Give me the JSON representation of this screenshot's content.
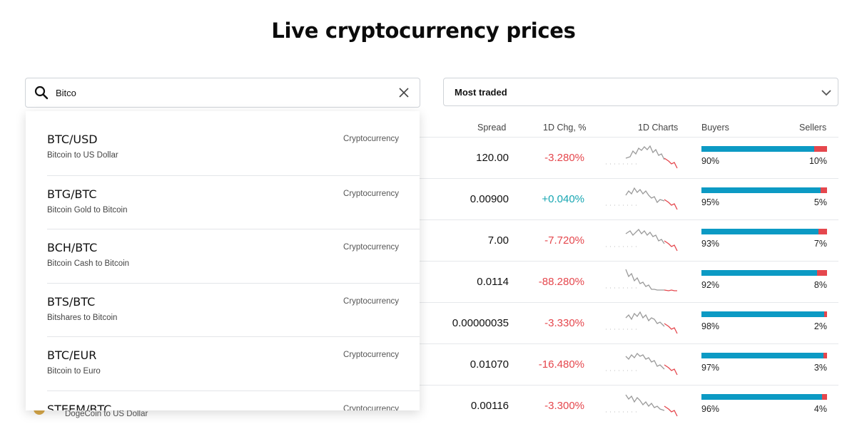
{
  "page": {
    "title": "Live cryptocurrency prices"
  },
  "search": {
    "value": "Bitco",
    "placeholder": ""
  },
  "sort": {
    "selected": "Most traded"
  },
  "table": {
    "headers": {
      "spread": "Spread",
      "chg": "1D Chg, %",
      "charts": "1D Charts",
      "buyers": "Buyers",
      "sellers": "Sellers"
    },
    "rows": [
      {
        "spread": "120.00",
        "chg": "-3.280%",
        "dir": "neg",
        "buyers": "90%",
        "sellers": "10%",
        "buy_frac": 0.9
      },
      {
        "spread": "0.00900",
        "chg": "+0.040%",
        "dir": "pos",
        "buyers": "95%",
        "sellers": "5%",
        "buy_frac": 0.95
      },
      {
        "spread": "7.00",
        "chg": "-7.720%",
        "dir": "neg",
        "buyers": "93%",
        "sellers": "7%",
        "buy_frac": 0.93
      },
      {
        "spread": "0.0114",
        "chg": "-88.280%",
        "dir": "neg",
        "buyers": "92%",
        "sellers": "8%",
        "buy_frac": 0.92
      },
      {
        "spread": "0.00000035",
        "chg": "-3.330%",
        "dir": "neg",
        "buyers": "98%",
        "sellers": "2%",
        "buy_frac": 0.98
      },
      {
        "spread": "0.01070",
        "chg": "-16.480%",
        "dir": "neg",
        "buyers": "97%",
        "sellers": "3%",
        "buy_frac": 0.97
      },
      {
        "spread": "0.00116",
        "chg": "-3.300%",
        "dir": "neg",
        "buyers": "96%",
        "sellers": "4%",
        "buy_frac": 0.96
      }
    ],
    "partial_row_sub": "DogeCoin to US Dollar"
  },
  "suggestions": [
    {
      "symbol": "BTC/USD",
      "type": "Cryptocurrency",
      "desc": "Bitcoin to US Dollar"
    },
    {
      "symbol": "BTG/BTC",
      "type": "Cryptocurrency",
      "desc": "Bitcoin Gold to Bitcoin"
    },
    {
      "symbol": "BCH/BTC",
      "type": "Cryptocurrency",
      "desc": "Bitcoin Cash to Bitcoin"
    },
    {
      "symbol": "BTS/BTC",
      "type": "Cryptocurrency",
      "desc": "Bitshares to Bitcoin"
    },
    {
      "symbol": "BTC/EUR",
      "type": "Cryptocurrency",
      "desc": "Bitcoin to Euro"
    },
    {
      "symbol": "STEEM/BTC",
      "type": "Cryptocurrency",
      "desc": ""
    }
  ],
  "colors": {
    "negative": "#e5474d",
    "positive": "#17a6b2",
    "buyers": "#0c9ac4",
    "sellers": "#e5474d"
  }
}
